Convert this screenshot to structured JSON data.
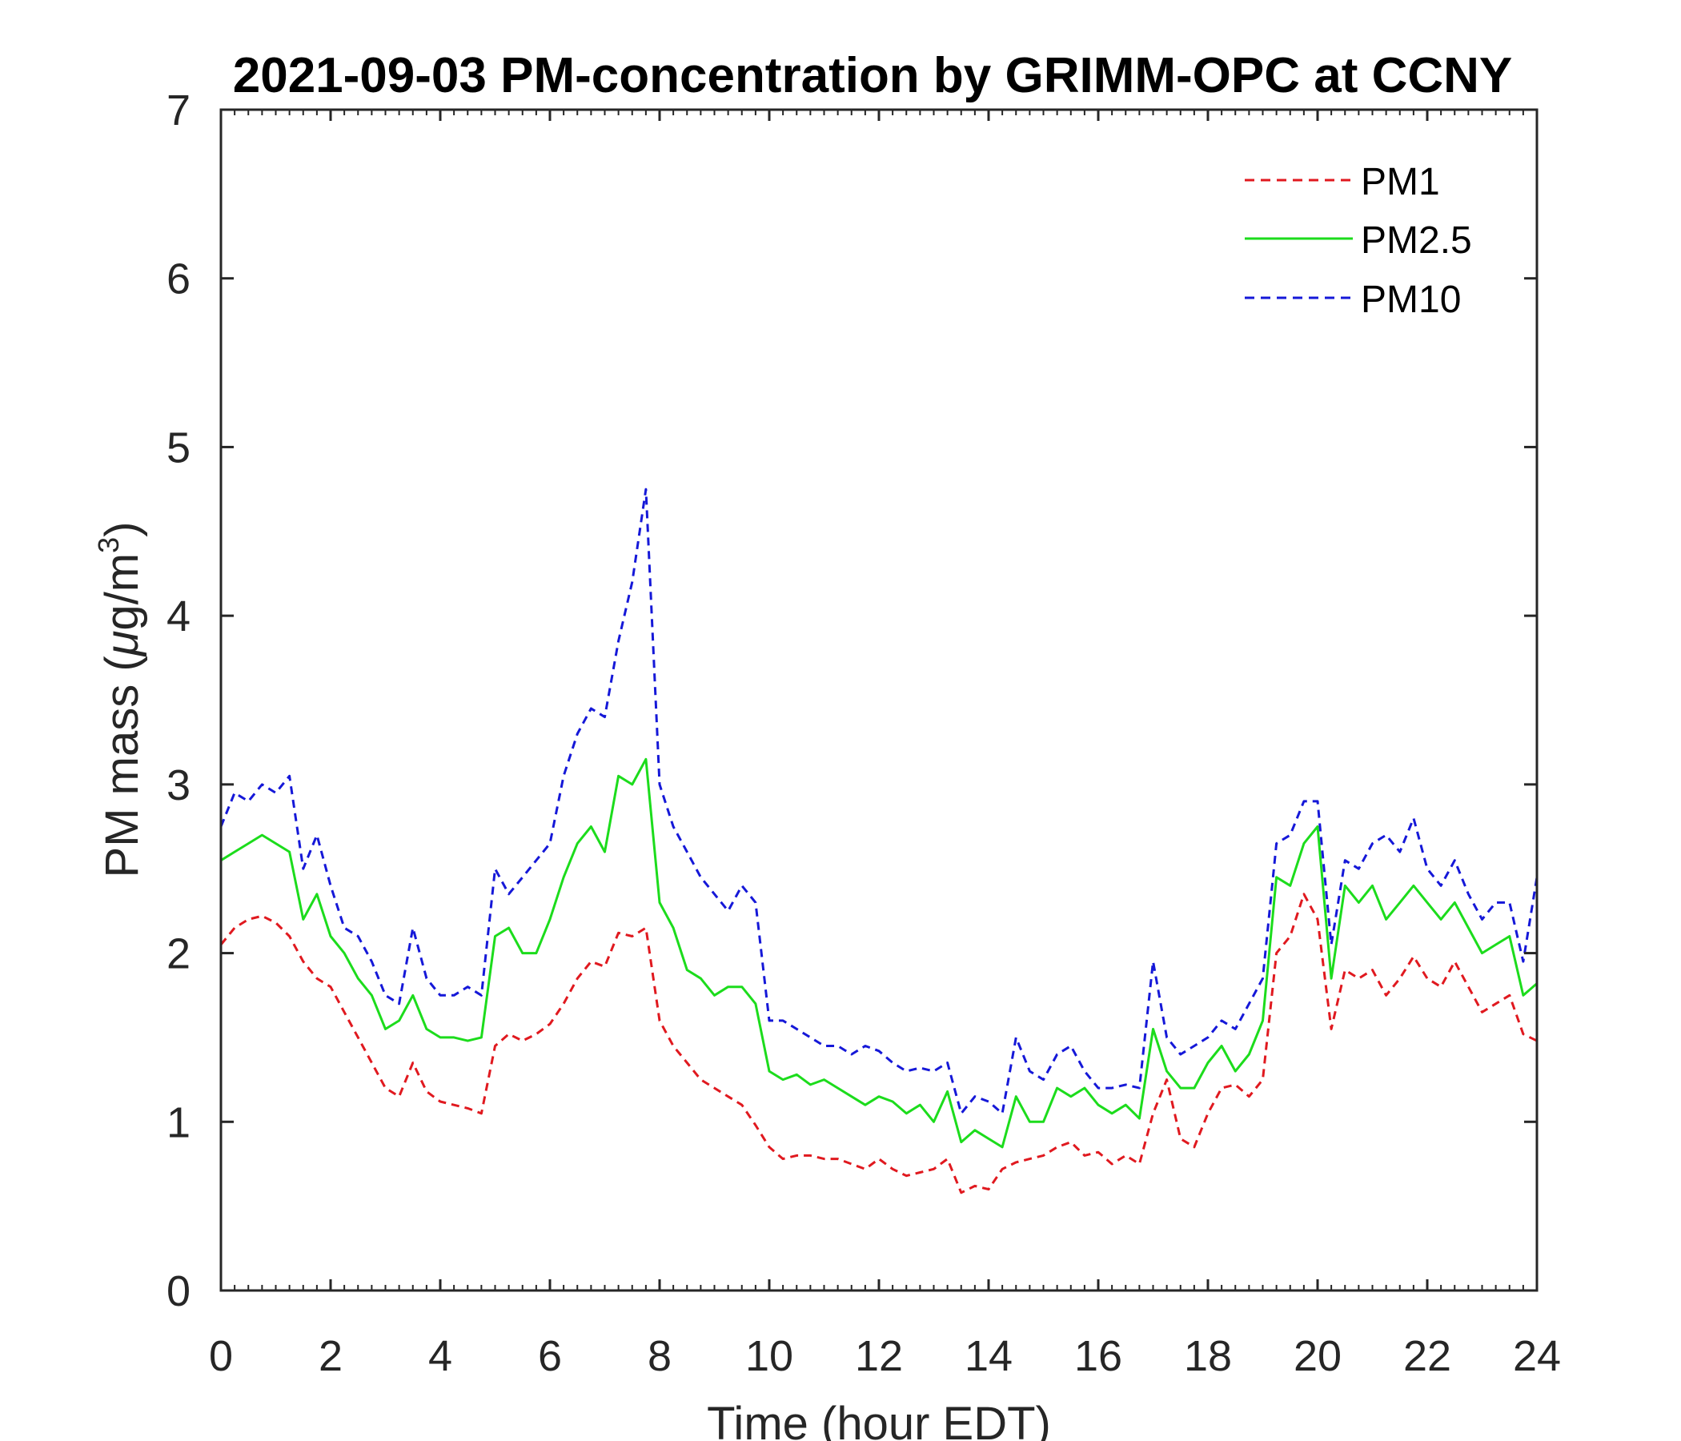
{
  "chart_data": {
    "type": "line",
    "title": "2021-09-03 PM-concentration by GRIMM-OPC at CCNY",
    "xlabel": "Time (hour EDT)",
    "ylabel_main": "PM mass (",
    "ylabel_mu": "μ",
    "ylabel_unit": "g/m",
    "ylabel_sup": "3",
    "ylabel_close": ")",
    "xlim": [
      0,
      24
    ],
    "ylim": [
      0,
      7
    ],
    "xticks": [
      "0",
      "2",
      "4",
      "6",
      "8",
      "10",
      "12",
      "14",
      "16",
      "18",
      "20",
      "22",
      "24"
    ],
    "yticks": [
      "0",
      "1",
      "2",
      "3",
      "4",
      "5",
      "6",
      "7"
    ],
    "legend_position": "top-right",
    "series": [
      {
        "name": "PM1",
        "color": "#e0191f",
        "style": "dashed",
        "points": [
          [
            0,
            2.05
          ],
          [
            0.25,
            2.15
          ],
          [
            0.5,
            2.2
          ],
          [
            0.75,
            2.22
          ],
          [
            1,
            2.18
          ],
          [
            1.25,
            2.1
          ],
          [
            1.5,
            1.95
          ],
          [
            1.75,
            1.85
          ],
          [
            2,
            1.8
          ],
          [
            2.25,
            1.65
          ],
          [
            2.5,
            1.5
          ],
          [
            2.75,
            1.35
          ],
          [
            3,
            1.2
          ],
          [
            3.25,
            1.15
          ],
          [
            3.5,
            1.35
          ],
          [
            3.75,
            1.18
          ],
          [
            4,
            1.12
          ],
          [
            4.25,
            1.1
          ],
          [
            4.5,
            1.08
          ],
          [
            4.75,
            1.05
          ],
          [
            5,
            1.45
          ],
          [
            5.25,
            1.52
          ],
          [
            5.5,
            1.48
          ],
          [
            5.75,
            1.52
          ],
          [
            6,
            1.58
          ],
          [
            6.25,
            1.7
          ],
          [
            6.5,
            1.85
          ],
          [
            6.75,
            1.95
          ],
          [
            7,
            1.92
          ],
          [
            7.25,
            2.12
          ],
          [
            7.5,
            2.1
          ],
          [
            7.75,
            2.15
          ],
          [
            8,
            1.6
          ],
          [
            8.25,
            1.45
          ],
          [
            8.5,
            1.35
          ],
          [
            8.75,
            1.25
          ],
          [
            9,
            1.2
          ],
          [
            9.25,
            1.15
          ],
          [
            9.5,
            1.1
          ],
          [
            9.75,
            0.98
          ],
          [
            10,
            0.85
          ],
          [
            10.25,
            0.78
          ],
          [
            10.5,
            0.8
          ],
          [
            10.75,
            0.8
          ],
          [
            11,
            0.78
          ],
          [
            11.25,
            0.78
          ],
          [
            11.5,
            0.75
          ],
          [
            11.75,
            0.72
          ],
          [
            12,
            0.78
          ],
          [
            12.25,
            0.72
          ],
          [
            12.5,
            0.68
          ],
          [
            12.75,
            0.7
          ],
          [
            13,
            0.72
          ],
          [
            13.25,
            0.78
          ],
          [
            13.5,
            0.58
          ],
          [
            13.75,
            0.62
          ],
          [
            14,
            0.6
          ],
          [
            14.25,
            0.72
          ],
          [
            14.5,
            0.76
          ],
          [
            14.75,
            0.78
          ],
          [
            15,
            0.8
          ],
          [
            15.25,
            0.85
          ],
          [
            15.5,
            0.88
          ],
          [
            15.75,
            0.8
          ],
          [
            16,
            0.82
          ],
          [
            16.25,
            0.75
          ],
          [
            16.5,
            0.8
          ],
          [
            16.75,
            0.75
          ],
          [
            17,
            1.05
          ],
          [
            17.25,
            1.25
          ],
          [
            17.5,
            0.9
          ],
          [
            17.75,
            0.85
          ],
          [
            18,
            1.05
          ],
          [
            18.25,
            1.2
          ],
          [
            18.5,
            1.22
          ],
          [
            18.75,
            1.15
          ],
          [
            19,
            1.25
          ],
          [
            19.25,
            2
          ],
          [
            19.5,
            2.1
          ],
          [
            19.75,
            2.35
          ],
          [
            20,
            2.2
          ],
          [
            20.25,
            1.55
          ],
          [
            20.5,
            1.9
          ],
          [
            20.75,
            1.85
          ],
          [
            21,
            1.9
          ],
          [
            21.25,
            1.75
          ],
          [
            21.5,
            1.85
          ],
          [
            21.75,
            1.98
          ],
          [
            22,
            1.85
          ],
          [
            22.25,
            1.8
          ],
          [
            22.5,
            1.95
          ],
          [
            22.75,
            1.8
          ],
          [
            23,
            1.65
          ],
          [
            23.25,
            1.7
          ],
          [
            23.5,
            1.75
          ],
          [
            23.75,
            1.52
          ],
          [
            24,
            1.48
          ]
        ]
      },
      {
        "name": "PM2.5",
        "color": "#1cdc1c",
        "style": "solid",
        "points": [
          [
            0,
            2.55
          ],
          [
            0.25,
            2.6
          ],
          [
            0.5,
            2.65
          ],
          [
            0.75,
            2.7
          ],
          [
            1,
            2.65
          ],
          [
            1.25,
            2.6
          ],
          [
            1.5,
            2.2
          ],
          [
            1.75,
            2.35
          ],
          [
            2,
            2.1
          ],
          [
            2.25,
            2
          ],
          [
            2.5,
            1.85
          ],
          [
            2.75,
            1.75
          ],
          [
            3,
            1.55
          ],
          [
            3.25,
            1.6
          ],
          [
            3.5,
            1.75
          ],
          [
            3.75,
            1.55
          ],
          [
            4,
            1.5
          ],
          [
            4.25,
            1.5
          ],
          [
            4.5,
            1.48
          ],
          [
            4.75,
            1.5
          ],
          [
            5,
            2.1
          ],
          [
            5.25,
            2.15
          ],
          [
            5.5,
            2
          ],
          [
            5.75,
            2
          ],
          [
            6,
            2.2
          ],
          [
            6.25,
            2.45
          ],
          [
            6.5,
            2.65
          ],
          [
            6.75,
            2.75
          ],
          [
            7,
            2.6
          ],
          [
            7.25,
            3.05
          ],
          [
            7.5,
            3
          ],
          [
            7.75,
            3.15
          ],
          [
            8,
            2.3
          ],
          [
            8.25,
            2.15
          ],
          [
            8.5,
            1.9
          ],
          [
            8.75,
            1.85
          ],
          [
            9,
            1.75
          ],
          [
            9.25,
            1.8
          ],
          [
            9.5,
            1.8
          ],
          [
            9.75,
            1.7
          ],
          [
            10,
            1.3
          ],
          [
            10.25,
            1.25
          ],
          [
            10.5,
            1.28
          ],
          [
            10.75,
            1.22
          ],
          [
            11,
            1.25
          ],
          [
            11.25,
            1.2
          ],
          [
            11.5,
            1.15
          ],
          [
            11.75,
            1.1
          ],
          [
            12,
            1.15
          ],
          [
            12.25,
            1.12
          ],
          [
            12.5,
            1.05
          ],
          [
            12.75,
            1.1
          ],
          [
            13,
            1
          ],
          [
            13.25,
            1.18
          ],
          [
            13.5,
            0.88
          ],
          [
            13.75,
            0.95
          ],
          [
            14,
            0.9
          ],
          [
            14.25,
            0.85
          ],
          [
            14.5,
            1.15
          ],
          [
            14.75,
            1
          ],
          [
            15,
            1
          ],
          [
            15.25,
            1.2
          ],
          [
            15.5,
            1.15
          ],
          [
            15.75,
            1.2
          ],
          [
            16,
            1.1
          ],
          [
            16.25,
            1.05
          ],
          [
            16.5,
            1.1
          ],
          [
            16.75,
            1.02
          ],
          [
            17,
            1.55
          ],
          [
            17.25,
            1.3
          ],
          [
            17.5,
            1.2
          ],
          [
            17.75,
            1.2
          ],
          [
            18,
            1.35
          ],
          [
            18.25,
            1.45
          ],
          [
            18.5,
            1.3
          ],
          [
            18.75,
            1.4
          ],
          [
            19,
            1.6
          ],
          [
            19.25,
            2.45
          ],
          [
            19.5,
            2.4
          ],
          [
            19.75,
            2.65
          ],
          [
            20,
            2.75
          ],
          [
            20.25,
            1.85
          ],
          [
            20.5,
            2.4
          ],
          [
            20.75,
            2.3
          ],
          [
            21,
            2.4
          ],
          [
            21.25,
            2.2
          ],
          [
            21.5,
            2.3
          ],
          [
            21.75,
            2.4
          ],
          [
            22,
            2.3
          ],
          [
            22.25,
            2.2
          ],
          [
            22.5,
            2.3
          ],
          [
            22.75,
            2.15
          ],
          [
            23,
            2
          ],
          [
            23.25,
            2.05
          ],
          [
            23.5,
            2.1
          ],
          [
            23.75,
            1.75
          ],
          [
            24,
            1.82
          ]
        ]
      },
      {
        "name": "PM10",
        "color": "#1518d8",
        "style": "dashed",
        "points": [
          [
            0,
            2.75
          ],
          [
            0.25,
            2.95
          ],
          [
            0.5,
            2.9
          ],
          [
            0.75,
            3
          ],
          [
            1,
            2.95
          ],
          [
            1.25,
            3.05
          ],
          [
            1.5,
            2.5
          ],
          [
            1.75,
            2.7
          ],
          [
            2,
            2.4
          ],
          [
            2.25,
            2.15
          ],
          [
            2.5,
            2.1
          ],
          [
            2.75,
            1.95
          ],
          [
            3,
            1.75
          ],
          [
            3.25,
            1.7
          ],
          [
            3.5,
            2.15
          ],
          [
            3.75,
            1.85
          ],
          [
            4,
            1.75
          ],
          [
            4.25,
            1.75
          ],
          [
            4.5,
            1.8
          ],
          [
            4.75,
            1.75
          ],
          [
            5,
            2.5
          ],
          [
            5.25,
            2.35
          ],
          [
            5.5,
            2.45
          ],
          [
            5.75,
            2.55
          ],
          [
            6,
            2.65
          ],
          [
            6.25,
            3.05
          ],
          [
            6.5,
            3.3
          ],
          [
            6.75,
            3.45
          ],
          [
            7,
            3.4
          ],
          [
            7.25,
            3.85
          ],
          [
            7.5,
            4.2
          ],
          [
            7.75,
            4.75
          ],
          [
            8,
            3
          ],
          [
            8.25,
            2.75
          ],
          [
            8.5,
            2.6
          ],
          [
            8.75,
            2.45
          ],
          [
            9,
            2.35
          ],
          [
            9.25,
            2.25
          ],
          [
            9.5,
            2.4
          ],
          [
            9.75,
            2.3
          ],
          [
            10,
            1.6
          ],
          [
            10.25,
            1.6
          ],
          [
            10.5,
            1.55
          ],
          [
            10.75,
            1.5
          ],
          [
            11,
            1.45
          ],
          [
            11.25,
            1.45
          ],
          [
            11.5,
            1.4
          ],
          [
            11.75,
            1.45
          ],
          [
            12,
            1.42
          ],
          [
            12.25,
            1.35
          ],
          [
            12.5,
            1.3
          ],
          [
            12.75,
            1.32
          ],
          [
            13,
            1.3
          ],
          [
            13.25,
            1.35
          ],
          [
            13.5,
            1.05
          ],
          [
            13.75,
            1.15
          ],
          [
            14,
            1.12
          ],
          [
            14.25,
            1.05
          ],
          [
            14.5,
            1.5
          ],
          [
            14.75,
            1.3
          ],
          [
            15,
            1.25
          ],
          [
            15.25,
            1.4
          ],
          [
            15.5,
            1.45
          ],
          [
            15.75,
            1.3
          ],
          [
            16,
            1.2
          ],
          [
            16.25,
            1.2
          ],
          [
            16.5,
            1.22
          ],
          [
            16.75,
            1.2
          ],
          [
            17,
            1.95
          ],
          [
            17.25,
            1.5
          ],
          [
            17.5,
            1.4
          ],
          [
            17.75,
            1.45
          ],
          [
            18,
            1.5
          ],
          [
            18.25,
            1.6
          ],
          [
            18.5,
            1.55
          ],
          [
            18.75,
            1.7
          ],
          [
            19,
            1.85
          ],
          [
            19.25,
            2.65
          ],
          [
            19.5,
            2.7
          ],
          [
            19.75,
            2.9
          ],
          [
            20,
            2.9
          ],
          [
            20.25,
            2.05
          ],
          [
            20.5,
            2.55
          ],
          [
            20.75,
            2.5
          ],
          [
            21,
            2.65
          ],
          [
            21.25,
            2.7
          ],
          [
            21.5,
            2.6
          ],
          [
            21.75,
            2.8
          ],
          [
            22,
            2.5
          ],
          [
            22.25,
            2.4
          ],
          [
            22.5,
            2.55
          ],
          [
            22.75,
            2.35
          ],
          [
            23,
            2.2
          ],
          [
            23.25,
            2.3
          ],
          [
            23.5,
            2.3
          ],
          [
            23.75,
            1.95
          ],
          [
            24,
            2.45
          ]
        ]
      }
    ]
  }
}
